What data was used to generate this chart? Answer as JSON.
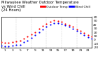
{
  "title": "Milwaukee Weather Outdoor Temperature\nvs Wind Chill\n(24 Hours)",
  "legend_labels": [
    "Outdoor Temp",
    "Wind Chill"
  ],
  "legend_colors": [
    "#ff0000",
    "#0000ff"
  ],
  "x_hours": [
    0,
    1,
    2,
    3,
    4,
    5,
    6,
    7,
    8,
    9,
    10,
    11,
    12,
    13,
    14,
    15,
    16,
    17,
    18,
    19,
    20,
    21,
    22,
    23,
    24
  ],
  "temp_outdoor": [
    -5,
    -7,
    -7,
    -5,
    -3,
    -1,
    3,
    9,
    15,
    21,
    29,
    36,
    43,
    48,
    51,
    50,
    47,
    43,
    39,
    34,
    28,
    23,
    18,
    13,
    9
  ],
  "wind_chill": [
    -15,
    -17,
    -16,
    -14,
    -13,
    -12,
    -6,
    -1,
    6,
    12,
    20,
    28,
    35,
    40,
    44,
    44,
    42,
    38,
    34,
    30,
    23,
    18,
    13,
    8,
    4
  ],
  "ylim": [
    -20,
    60
  ],
  "xlim": [
    0,
    24
  ],
  "ytick_values": [
    -20,
    -10,
    0,
    10,
    20,
    30,
    40,
    50,
    60
  ],
  "xtick_values": [
    0,
    1,
    2,
    3,
    4,
    5,
    6,
    7,
    8,
    9,
    10,
    11,
    12,
    13,
    14,
    15,
    16,
    17,
    18,
    19,
    20,
    21,
    22,
    23,
    24
  ],
  "grid_xticks": [
    4,
    8,
    12,
    16,
    20
  ],
  "grid_color": "#aaaaaa",
  "bg_color": "#ffffff",
  "border_color": "#000000",
  "dot_size": 2.5,
  "title_fontsize": 3.8,
  "tick_fontsize": 3.2,
  "legend_fontsize": 3.2
}
